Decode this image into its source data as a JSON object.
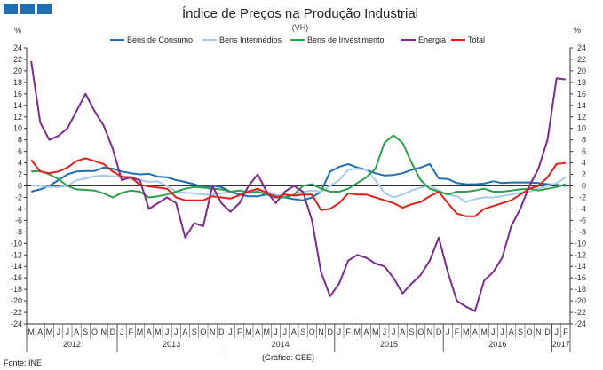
{
  "chart_data": {
    "type": "line",
    "title": "Índice de Preços na Produção Industrial",
    "subtitle": "(VH)",
    "ylabel_left": "%",
    "ylabel_right": "%",
    "ylim": [
      -24,
      24
    ],
    "ytick_step": 2,
    "grid": false,
    "legend_position": "top",
    "footnote_source": "Fonte: INE",
    "footnote_chart": "(Gráfico: GEE)",
    "colors": {
      "bens_consumo": "#1f6fb2",
      "bens_intermedios": "#a9cbe8",
      "bens_investimento": "#2ca04c",
      "energia": "#7b2c8c",
      "total": "#e0201b",
      "logo": "#1f6fb2",
      "axis": "#333333"
    },
    "month_labels": [
      "M",
      "A",
      "M",
      "J",
      "J",
      "A",
      "S",
      "O",
      "N",
      "D",
      "J",
      "F",
      "M",
      "A",
      "M",
      "J",
      "J",
      "A",
      "S",
      "O",
      "N",
      "D",
      "J",
      "F",
      "M",
      "A",
      "M",
      "J",
      "J",
      "A",
      "S",
      "O",
      "N",
      "D",
      "J",
      "F",
      "M",
      "A",
      "M",
      "J",
      "J",
      "A",
      "S",
      "O",
      "N",
      "D",
      "J",
      "F",
      "M",
      "A",
      "M",
      "J",
      "J",
      "A",
      "S",
      "O",
      "N",
      "D",
      "J",
      "F"
    ],
    "years": [
      {
        "label": "2012",
        "start": 0,
        "end": 9
      },
      {
        "label": "2013",
        "start": 10,
        "end": 21
      },
      {
        "label": "2014",
        "start": 22,
        "end": 33
      },
      {
        "label": "2015",
        "start": 34,
        "end": 45
      },
      {
        "label": "2016",
        "start": 46,
        "end": 57
      },
      {
        "label": "2017",
        "start": 58,
        "end": 59
      }
    ],
    "series": [
      {
        "key": "bens_consumo",
        "name": "Bens de Consumo",
        "values": [
          -1,
          -0.6,
          0,
          1,
          2,
          2.5,
          2.6,
          2.6,
          3.2,
          3.0,
          2.5,
          2.2,
          2.0,
          2.1,
          1.6,
          1.5,
          1.0,
          0.7,
          0.3,
          -0.3,
          0,
          -0.2,
          -1.0,
          -1.5,
          -1.8,
          -1.8,
          -1.5,
          -1.7,
          -2.0,
          -2.3,
          -2.5,
          -2.0,
          -1.0,
          2.5,
          3.3,
          3.8,
          3.2,
          2.8,
          2.2,
          1.8,
          1.9,
          2.2,
          2.8,
          3.2,
          3.8,
          1.3,
          1.2,
          0.5,
          0.3,
          0.3,
          0.4,
          0.8,
          0.5,
          0.6,
          0.6,
          0.6,
          0.5,
          0.3,
          0.2,
          0.0
        ]
      },
      {
        "key": "bens_intermedios",
        "name": "Bens Intermédios",
        "values": [
          0,
          0,
          -0.2,
          -0.2,
          0,
          1.0,
          1.3,
          1.7,
          1.8,
          1.7,
          1.5,
          1.2,
          1.0,
          0.7,
          0.8,
          0.0,
          -1.0,
          -1.2,
          -1.3,
          -1.5,
          -1.5,
          -1.3,
          -1.0,
          -0.8,
          -0.8,
          -0.7,
          -1.0,
          -1.5,
          -2.0,
          -1.5,
          -1.0,
          -0.8,
          -1.0,
          0,
          1.0,
          2.8,
          3.0,
          2.8,
          1.0,
          -1.2,
          -2.0,
          -1.5,
          -0.8,
          -0.3,
          0,
          -0.8,
          -1.5,
          -1.8,
          -2.8,
          -2.3,
          -2.0,
          -2.0,
          -1.8,
          -1.5,
          -1.2,
          -1.0,
          -0.5,
          0,
          0.5,
          1.5
        ]
      },
      {
        "key": "bens_investimento",
        "name": "Bens de Investimento",
        "values": [
          2.5,
          2.6,
          2.0,
          1.2,
          0,
          -0.6,
          -0.7,
          -0.8,
          -1.3,
          -2.0,
          -1.2,
          -0.8,
          -1.0,
          -2.0,
          -1.8,
          -1.5,
          -1.0,
          -0.5,
          -0.2,
          -0.3,
          -0.5,
          -0.6,
          -1.0,
          -0.8,
          -1.2,
          -1.0,
          -1.5,
          -2.0,
          -2.0,
          -1.5,
          0,
          0.3,
          -0.5,
          -1.0,
          -1.0,
          -0.5,
          0.5,
          1.5,
          3.0,
          7.5,
          8.8,
          7.5,
          4.0,
          1.0,
          -0.5,
          -1.0,
          -1.5,
          -1.0,
          -1.0,
          -0.8,
          -0.5,
          -1.0,
          -1.0,
          -0.8,
          -0.6,
          -0.5,
          -0.8,
          -0.5,
          -0.2,
          0.3
        ]
      },
      {
        "key": "energia",
        "name": "Energia",
        "values": [
          21.7,
          11,
          8,
          8.7,
          10,
          13,
          16,
          13,
          10.5,
          6.5,
          1,
          1.5,
          1.0,
          -4,
          -3,
          -2,
          -3,
          -9,
          -6.5,
          -7,
          0,
          -3,
          -4.5,
          -3,
          0,
          2,
          -1,
          -3,
          -1.0,
          0,
          -1,
          -6,
          -15,
          -19.2,
          -17,
          -13,
          -12,
          -12.5,
          -13.5,
          -14,
          -16,
          -18.7,
          -17,
          -15.5,
          -13,
          -9,
          -15,
          -20,
          -21,
          -21.8,
          -16.5,
          -15,
          -12.5,
          -7,
          -4,
          0,
          3,
          8,
          18.7,
          18.5
        ]
      },
      {
        "key": "total",
        "name": "Total",
        "values": [
          4.5,
          2.5,
          2.2,
          2.5,
          3.2,
          4.3,
          4.8,
          4.3,
          3.8,
          2.5,
          1.6,
          1.5,
          0.2,
          -0.1,
          -0.3,
          -0.5,
          -2.0,
          -2.5,
          -2.5,
          -2.5,
          -1.8,
          -2.0,
          -2.2,
          -1.6,
          -1.0,
          -0.5,
          -1.2,
          -2.0,
          -1.5,
          -1.7,
          -1.5,
          -1.5,
          -4.2,
          -4.0,
          -3.0,
          -1.3,
          -1.5,
          -1.5,
          -2.0,
          -2.5,
          -3.0,
          -3.8,
          -3.2,
          -2.8,
          -1.8,
          -1.0,
          -3.0,
          -4.8,
          -5.3,
          -5.3,
          -4.0,
          -3.5,
          -3.0,
          -2.5,
          -1.5,
          -0.5,
          0,
          1.5,
          3.8,
          4.0
        ]
      }
    ]
  }
}
